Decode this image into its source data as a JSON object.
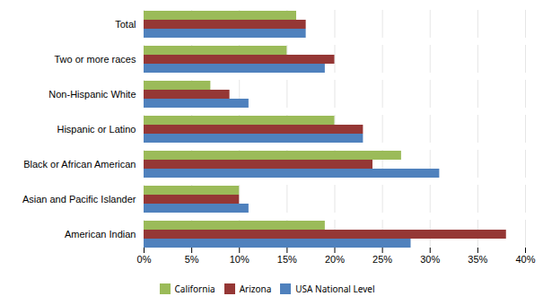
{
  "chart_data": {
    "type": "bar",
    "orientation": "horizontal",
    "categories": [
      "American Indian",
      "Asian and Pacific Islander",
      "Black or African American",
      "Hispanic or Latino",
      "Non-Hispanic White",
      "Two or more races",
      "Total"
    ],
    "series": [
      {
        "name": "California",
        "color": "#9BBB59",
        "values": [
          0.19,
          0.1,
          0.27,
          0.2,
          0.07,
          0.15,
          0.16
        ]
      },
      {
        "name": "Arizona",
        "color": "#953735",
        "values": [
          0.38,
          0.1,
          0.24,
          0.23,
          0.09,
          0.2,
          0.17
        ]
      },
      {
        "name": "USA National Level",
        "color": "#4F81BD",
        "values": [
          0.28,
          0.11,
          0.31,
          0.23,
          0.11,
          0.19,
          0.17
        ]
      }
    ],
    "xlim": [
      0,
      0.4
    ],
    "xticks": [
      {
        "value": 0.0,
        "label": "0%"
      },
      {
        "value": 0.05,
        "label": "5%"
      },
      {
        "value": 0.1,
        "label": "10%"
      },
      {
        "value": 0.15,
        "label": "15%"
      },
      {
        "value": 0.2,
        "label": "20%"
      },
      {
        "value": 0.25,
        "label": "25%"
      },
      {
        "value": 0.3,
        "label": "30%"
      },
      {
        "value": 0.35,
        "label": "35%"
      },
      {
        "value": 0.4,
        "label": "40%"
      }
    ],
    "grid": true,
    "legend": "bottom"
  }
}
